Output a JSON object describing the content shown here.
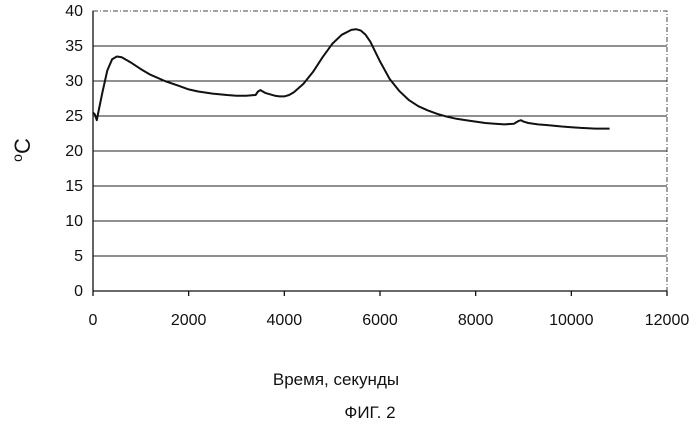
{
  "chart_data": {
    "type": "line",
    "title": "",
    "xlabel": "Время,  секунды",
    "ylabel_main": "C",
    "ylabel_sup": "o",
    "caption": "ФИГ. 2",
    "xlim": [
      0,
      12000
    ],
    "ylim": [
      0,
      40
    ],
    "xticks": [
      "0",
      "2000",
      "4000",
      "6000",
      "8000",
      "10000",
      "12000"
    ],
    "yticks": [
      "0",
      "5",
      "10",
      "15",
      "20",
      "25",
      "30",
      "35",
      "40"
    ],
    "grid": true,
    "legend": "none",
    "series": [
      {
        "x": [
          0,
          40,
          80,
          120,
          200,
          300,
          400,
          500,
          600,
          800,
          1000,
          1200,
          1500,
          1800,
          2000,
          2200,
          2500,
          2800,
          3000,
          3200,
          3400,
          3450,
          3500,
          3550,
          3600,
          3700,
          3800,
          3900,
          4000,
          4100,
          4200,
          4400,
          4600,
          4800,
          5000,
          5200,
          5400,
          5500,
          5600,
          5700,
          5800,
          6000,
          6200,
          6400,
          6600,
          6800,
          7000,
          7200,
          7400,
          7600,
          7800,
          8000,
          8200,
          8400,
          8600,
          8800,
          8900,
          8950,
          9000,
          9100,
          9300,
          9500,
          9800,
          10000,
          10200,
          10500,
          10800
        ],
        "y": [
          25.5,
          25.2,
          24.4,
          25.8,
          28.5,
          31.5,
          33.1,
          33.5,
          33.4,
          32.6,
          31.7,
          30.9,
          30.0,
          29.3,
          28.8,
          28.5,
          28.2,
          28.0,
          27.9,
          27.9,
          28.0,
          28.5,
          28.7,
          28.5,
          28.3,
          28.1,
          27.9,
          27.8,
          27.8,
          28.0,
          28.4,
          29.6,
          31.3,
          33.4,
          35.3,
          36.6,
          37.3,
          37.4,
          37.2,
          36.6,
          35.6,
          32.8,
          30.3,
          28.6,
          27.3,
          26.4,
          25.8,
          25.3,
          24.9,
          24.6,
          24.4,
          24.2,
          24.0,
          23.9,
          23.8,
          23.9,
          24.3,
          24.4,
          24.2,
          24.0,
          23.8,
          23.7,
          23.5,
          23.4,
          23.3,
          23.2,
          23.2
        ]
      }
    ]
  }
}
